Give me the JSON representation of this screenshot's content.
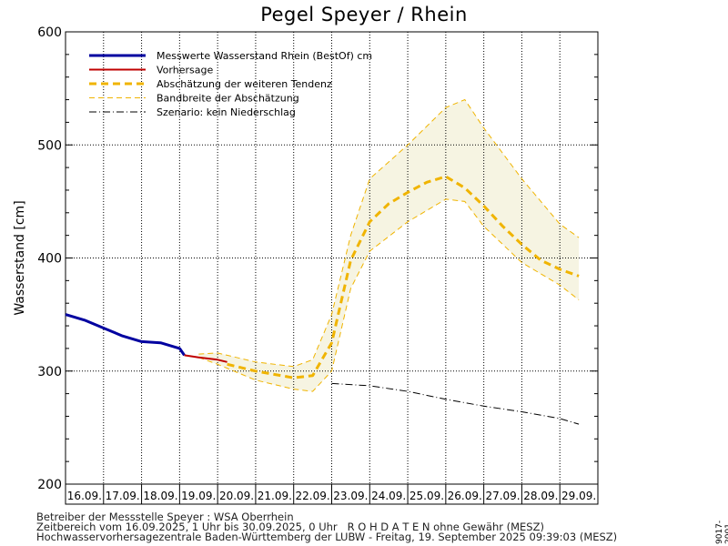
{
  "chart_data": {
    "type": "line",
    "title": "Pegel Speyer / Rhein",
    "ylabel": "Wasserstand [cm]",
    "xlabel": "",
    "ylim": [
      200,
      600
    ],
    "yticks": [
      200,
      300,
      400,
      500,
      600
    ],
    "grid": true,
    "legend_position": "top-left",
    "x_range": [
      "16.09.2025 00:00",
      "30.09.2025 00:00"
    ],
    "categories": [
      "16.09.",
      "17.09.",
      "18.09.",
      "19.09.",
      "20.09.",
      "21.09.",
      "22.09.",
      "23.09.",
      "24.09.",
      "25.09.",
      "26.09.",
      "27.09.",
      "28.09.",
      "29.09."
    ],
    "legend": [
      {
        "label": "Messwerte Wasserstand Rhein (BestOf)  cm",
        "style": "measured"
      },
      {
        "label": "Vorhersage",
        "style": "forecast"
      },
      {
        "label": "Abschätzung der weiteren Tendenz",
        "style": "tendency"
      },
      {
        "label": "Bandbreite der Abschätzung",
        "style": "band"
      },
      {
        "label": "Szenario: kein Niederschlag",
        "style": "scenario"
      }
    ],
    "series": [
      {
        "name": "Messwerte Wasserstand Rhein (BestOf)  cm",
        "color": "#0000a0",
        "x": [
          "16.09. 00:00",
          "16.09. 12:00",
          "17.09. 00:00",
          "17.09. 12:00",
          "18.09. 00:00",
          "18.09. 12:00",
          "19.09. 00:00",
          "19.09. 03:00"
        ],
        "y": [
          350,
          345,
          338,
          331,
          326,
          325,
          320,
          314
        ]
      },
      {
        "name": "Vorhersage",
        "color": "#c00000",
        "x": [
          "19.09. 03:00",
          "19.09. 12:00",
          "20.09. 00:00",
          "20.09. 06:00"
        ],
        "y": [
          314,
          312,
          310,
          308
        ]
      },
      {
        "name": "Abschätzung der weiteren Tendenz",
        "color": "#f0b400",
        "x": [
          "20.09. 06:00",
          "21.09. 00:00",
          "21.09. 12:00",
          "22.09. 00:00",
          "22.09. 12:00",
          "23.09. 00:00",
          "23.09. 12:00",
          "24.09. 00:00",
          "24.09. 12:00",
          "25.09. 00:00",
          "25.09. 12:00",
          "26.09. 00:00",
          "26.09. 12:00",
          "27.09. 00:00",
          "27.09. 12:00",
          "28.09. 00:00",
          "28.09. 12:00",
          "29.09. 00:00",
          "29.09. 12:00"
        ],
        "y": [
          306,
          300,
          297,
          294,
          296,
          325,
          398,
          432,
          448,
          458,
          467,
          472,
          462,
          446,
          428,
          412,
          398,
          390,
          384
        ]
      },
      {
        "name": "Bandbreite der Abschätzung",
        "color": "#f0b400",
        "x": [
          "19.09. 12:00",
          "20.09. 00:00",
          "21.09. 00:00",
          "22.09. 00:00",
          "22.09. 12:00",
          "23.09. 00:00",
          "23.09. 12:00",
          "24.09. 00:00",
          "25.09. 00:00",
          "26.09. 00:00",
          "26.09. 12:00",
          "27.09. 00:00",
          "28.09. 00:00",
          "29.09. 00:00",
          "29.09. 12:00"
        ],
        "upper": [
          315,
          316,
          308,
          304,
          310,
          350,
          420,
          470,
          500,
          533,
          540,
          515,
          470,
          430,
          418
        ],
        "lower": [
          312,
          306,
          292,
          284,
          282,
          300,
          373,
          406,
          432,
          452,
          450,
          428,
          396,
          376,
          363
        ]
      },
      {
        "name": "Szenario: kein Niederschlag",
        "color": "#000000",
        "x": [
          "23.09. 00:00",
          "24.09. 00:00",
          "25.09. 00:00",
          "26.09. 00:00",
          "27.09. 00:00",
          "28.09. 00:00",
          "29.09. 00:00",
          "29.09. 12:00"
        ],
        "y": [
          289,
          287,
          282,
          275,
          269,
          264,
          258,
          253
        ]
      }
    ]
  },
  "footer": {
    "line1": "Betreiber der Messstelle Speyer : WSA Oberrhein",
    "line2": "Zeitbereich vom 16.09.2025, 1 Uhr bis 30.09.2025, 0 Uhr   R O H D A T E N ohne Gewähr (MESZ)",
    "line3": "Hochwasservorhersagezentrale Baden-Württemberg der LUBW - Freitag, 19. September 2025 09:39:03 (MESZ)",
    "code": "9017-2001"
  }
}
